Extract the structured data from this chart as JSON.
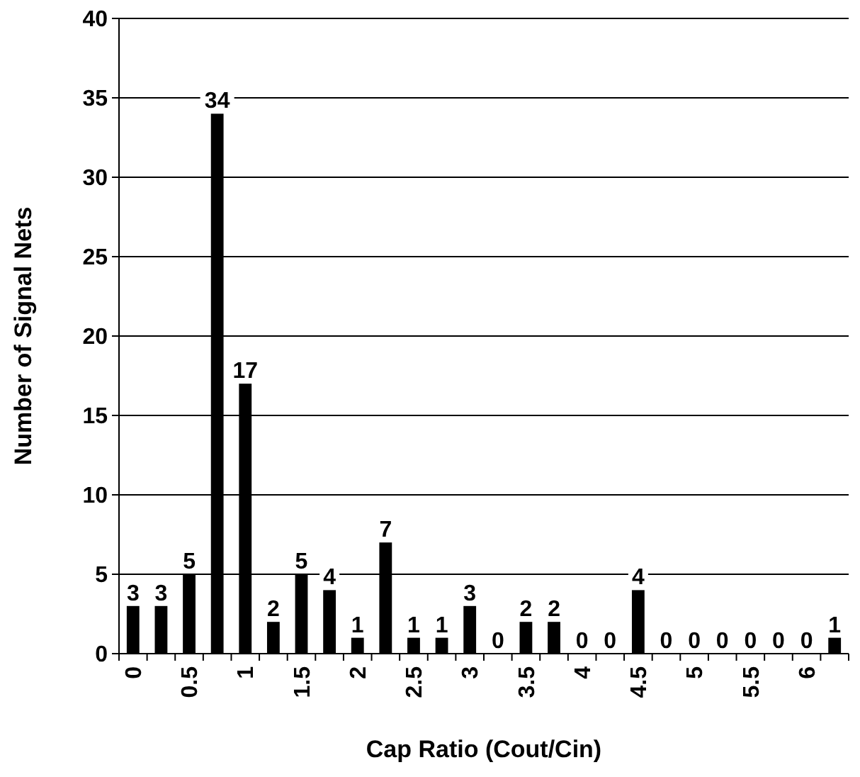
{
  "chart_data": {
    "type": "bar",
    "xlabel": "Cap Ratio (Cout/Cin)",
    "ylabel": "Number of Signal Nets",
    "categories": [
      "0",
      null,
      "0.5",
      null,
      "1",
      null,
      "1.5",
      null,
      "2",
      null,
      "2.5",
      null,
      "3",
      null,
      "3.5",
      null,
      "4",
      null,
      "4.5",
      null,
      "5",
      null,
      "5.5",
      null,
      "6",
      null
    ],
    "values": [
      3,
      3,
      5,
      34,
      17,
      2,
      5,
      4,
      1,
      7,
      1,
      1,
      3,
      0,
      2,
      2,
      0,
      0,
      4,
      0,
      0,
      0,
      0,
      0,
      0,
      1
    ],
    "color": "#000000",
    "ylim": [
      0,
      40
    ],
    "yticks": [
      0,
      5,
      10,
      15,
      20,
      25,
      30,
      35,
      40
    ],
    "grid": "y",
    "data_labels": true
  }
}
